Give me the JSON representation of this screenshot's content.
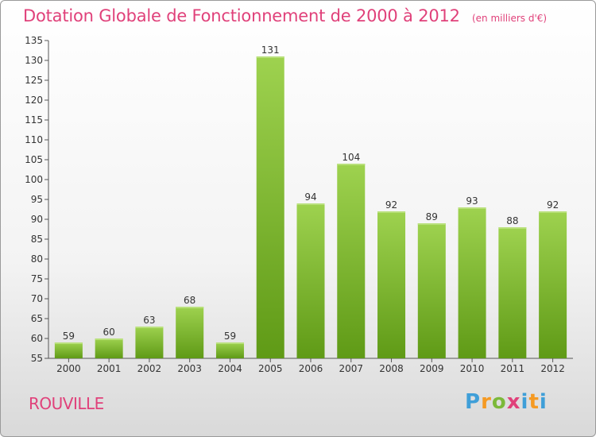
{
  "title": "Dotation Globale de Fonctionnement de 2000 à 2012",
  "subtitle": "(en milliers d'€)",
  "commune": "ROUVILLE",
  "logo": {
    "letters": [
      "P",
      "r",
      "o",
      "x",
      "i",
      "t",
      "i"
    ]
  },
  "colors": {
    "title": "#e0417a",
    "bar_top": "#9ed24f",
    "bar_bottom": "#5f9a16"
  },
  "chart_data": {
    "type": "bar",
    "title": "Dotation Globale de Fonctionnement de 2000 à 2012",
    "subtitle": "(en milliers d'€)",
    "categories": [
      "2000",
      "2001",
      "2002",
      "2003",
      "2004",
      "2005",
      "2006",
      "2007",
      "2008",
      "2009",
      "2010",
      "2011",
      "2012"
    ],
    "values": [
      59,
      60,
      63,
      68,
      59,
      131,
      94,
      104,
      92,
      89,
      93,
      88,
      92
    ],
    "ylim": [
      55,
      135
    ],
    "ytick_step": 5,
    "grid": false,
    "xlabel": "",
    "ylabel": ""
  }
}
